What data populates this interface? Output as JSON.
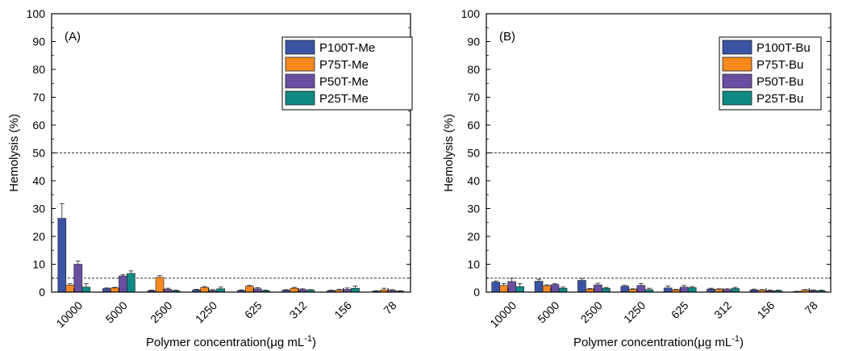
{
  "chart_data": [
    {
      "type": "bar",
      "panel_label": "(A)",
      "xlabel": "Polymer concentration(μg mL",
      "xlabel_sup": "-1",
      "xlabel_close": ")",
      "ylabel": "Hemolysis (%)",
      "ylim": [
        0,
        100
      ],
      "yticks": [
        "0",
        "10",
        "20",
        "30",
        "40",
        "50",
        "60",
        "70",
        "80",
        "90",
        "100"
      ],
      "reference_lines": [
        50,
        5
      ],
      "legend_position": "top-right",
      "categories": [
        "10000",
        "5000",
        "2500",
        "1250",
        "625",
        "312",
        "156",
        "78"
      ],
      "series": [
        {
          "name": "P100T-Me",
          "color": "#3a53a4",
          "values": [
            26.5,
            1.3,
            0.5,
            0.8,
            0.6,
            0.7,
            0.5,
            0.3
          ],
          "errors": [
            5.3,
            0.2,
            0.2,
            0.2,
            0.2,
            0.2,
            0.2,
            0.2
          ]
        },
        {
          "name": "P75T-Me",
          "color": "#f7891f",
          "values": [
            2.5,
            1.5,
            5.3,
            1.7,
            2.1,
            1.4,
            0.7,
            0.8
          ],
          "errors": [
            0.5,
            0.2,
            0.6,
            0.3,
            0.3,
            0.3,
            0.3,
            0.6
          ]
        },
        {
          "name": "P50T-Me",
          "color": "#6a4ea2",
          "values": [
            10.0,
            5.8,
            1.0,
            0.6,
            1.2,
            0.9,
            1.0,
            0.6
          ],
          "errors": [
            1.2,
            0.5,
            0.4,
            0.3,
            0.4,
            0.3,
            0.5,
            0.3
          ]
        },
        {
          "name": "P25T-Me",
          "color": "#0f8a83",
          "values": [
            1.8,
            6.7,
            0.5,
            1.2,
            0.5,
            0.7,
            1.4,
            0.3
          ],
          "errors": [
            1.2,
            0.9,
            0.2,
            0.6,
            0.2,
            0.2,
            0.8,
            0.2
          ]
        }
      ]
    },
    {
      "type": "bar",
      "panel_label": "(B)",
      "xlabel": "Polymer concentration(μg mL",
      "xlabel_sup": "-1",
      "xlabel_close": ")",
      "ylabel": "Hemolysis (%)",
      "ylim": [
        0,
        100
      ],
      "yticks": [
        "0",
        "10",
        "20",
        "30",
        "40",
        "50",
        "60",
        "70",
        "80",
        "90",
        "100"
      ],
      "reference_lines": [
        50,
        5
      ],
      "legend_position": "top-right",
      "categories": [
        "10000",
        "5000",
        "2500",
        "1250",
        "625",
        "312",
        "156",
        "78"
      ],
      "series": [
        {
          "name": "P100T-Bu",
          "color": "#3a53a4",
          "values": [
            3.6,
            3.9,
            4.2,
            2.1,
            1.5,
            1.1,
            0.8,
            0.2
          ],
          "errors": [
            0.4,
            0.7,
            0.7,
            0.3,
            0.7,
            0.3,
            0.3,
            0.1
          ]
        },
        {
          "name": "P75T-Bu",
          "color": "#f7891f",
          "values": [
            2.4,
            2.3,
            1.1,
            1.0,
            0.8,
            1.0,
            0.7,
            0.7
          ],
          "errors": [
            0.7,
            0.3,
            0.2,
            0.2,
            0.2,
            0.2,
            0.2,
            0.2
          ]
        },
        {
          "name": "P50T-Bu",
          "color": "#6a4ea2",
          "values": [
            3.8,
            2.7,
            2.6,
            2.4,
            1.8,
            0.9,
            0.5,
            0.6
          ],
          "errors": [
            1.2,
            0.3,
            0.6,
            0.7,
            0.6,
            0.3,
            0.2,
            0.2
          ]
        },
        {
          "name": "P25T-Bu",
          "color": "#0f8a83",
          "values": [
            2.0,
            1.4,
            1.4,
            0.9,
            1.6,
            1.3,
            0.5,
            0.5
          ],
          "errors": [
            1.0,
            0.4,
            0.3,
            0.5,
            0.4,
            0.4,
            0.2,
            0.2
          ]
        }
      ]
    }
  ]
}
